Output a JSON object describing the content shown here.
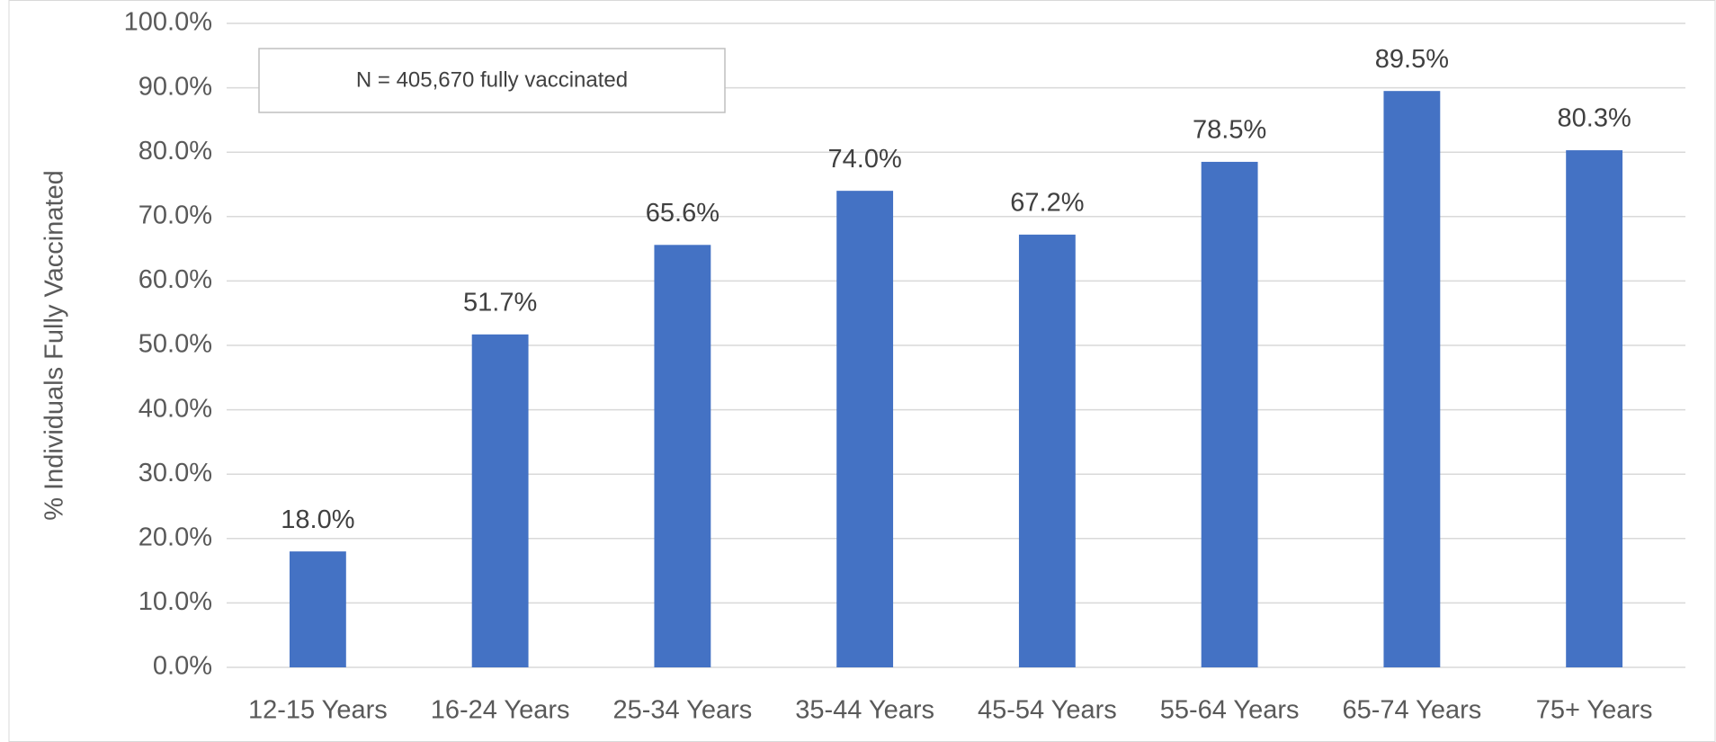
{
  "chart_data": {
    "type": "bar",
    "y_axis_label": "% Individuals Fully Vaccinated",
    "annotation": "N = 405,670 fully vaccinated",
    "categories": [
      "12-15 Years",
      "16-24 Years",
      "25-34 Years",
      "35-44 Years",
      "45-54 Years",
      "55-64 Years",
      "65-74 Years",
      "75+ Years"
    ],
    "values": [
      18.0,
      51.7,
      65.6,
      74.0,
      67.2,
      78.5,
      89.5,
      80.3
    ],
    "value_labels": [
      "18.0%",
      "51.7%",
      "65.6%",
      "74.0%",
      "67.2%",
      "78.5%",
      "89.5%",
      "80.3%"
    ],
    "color": "#4472c4",
    "ylim": [
      0,
      100
    ],
    "yticks": [
      {
        "value": 0,
        "label": "0.0%"
      },
      {
        "value": 10,
        "label": "10.0%"
      },
      {
        "value": 20,
        "label": "20.0%"
      },
      {
        "value": 30,
        "label": "30.0%"
      },
      {
        "value": 40,
        "label": "40.0%"
      },
      {
        "value": 50,
        "label": "50.0%"
      },
      {
        "value": 60,
        "label": "60.0%"
      },
      {
        "value": 70,
        "label": "70.0%"
      },
      {
        "value": 80,
        "label": "80.0%"
      },
      {
        "value": 90,
        "label": "90.0%"
      },
      {
        "value": 100,
        "label": "100.0%"
      }
    ],
    "grid": true
  }
}
